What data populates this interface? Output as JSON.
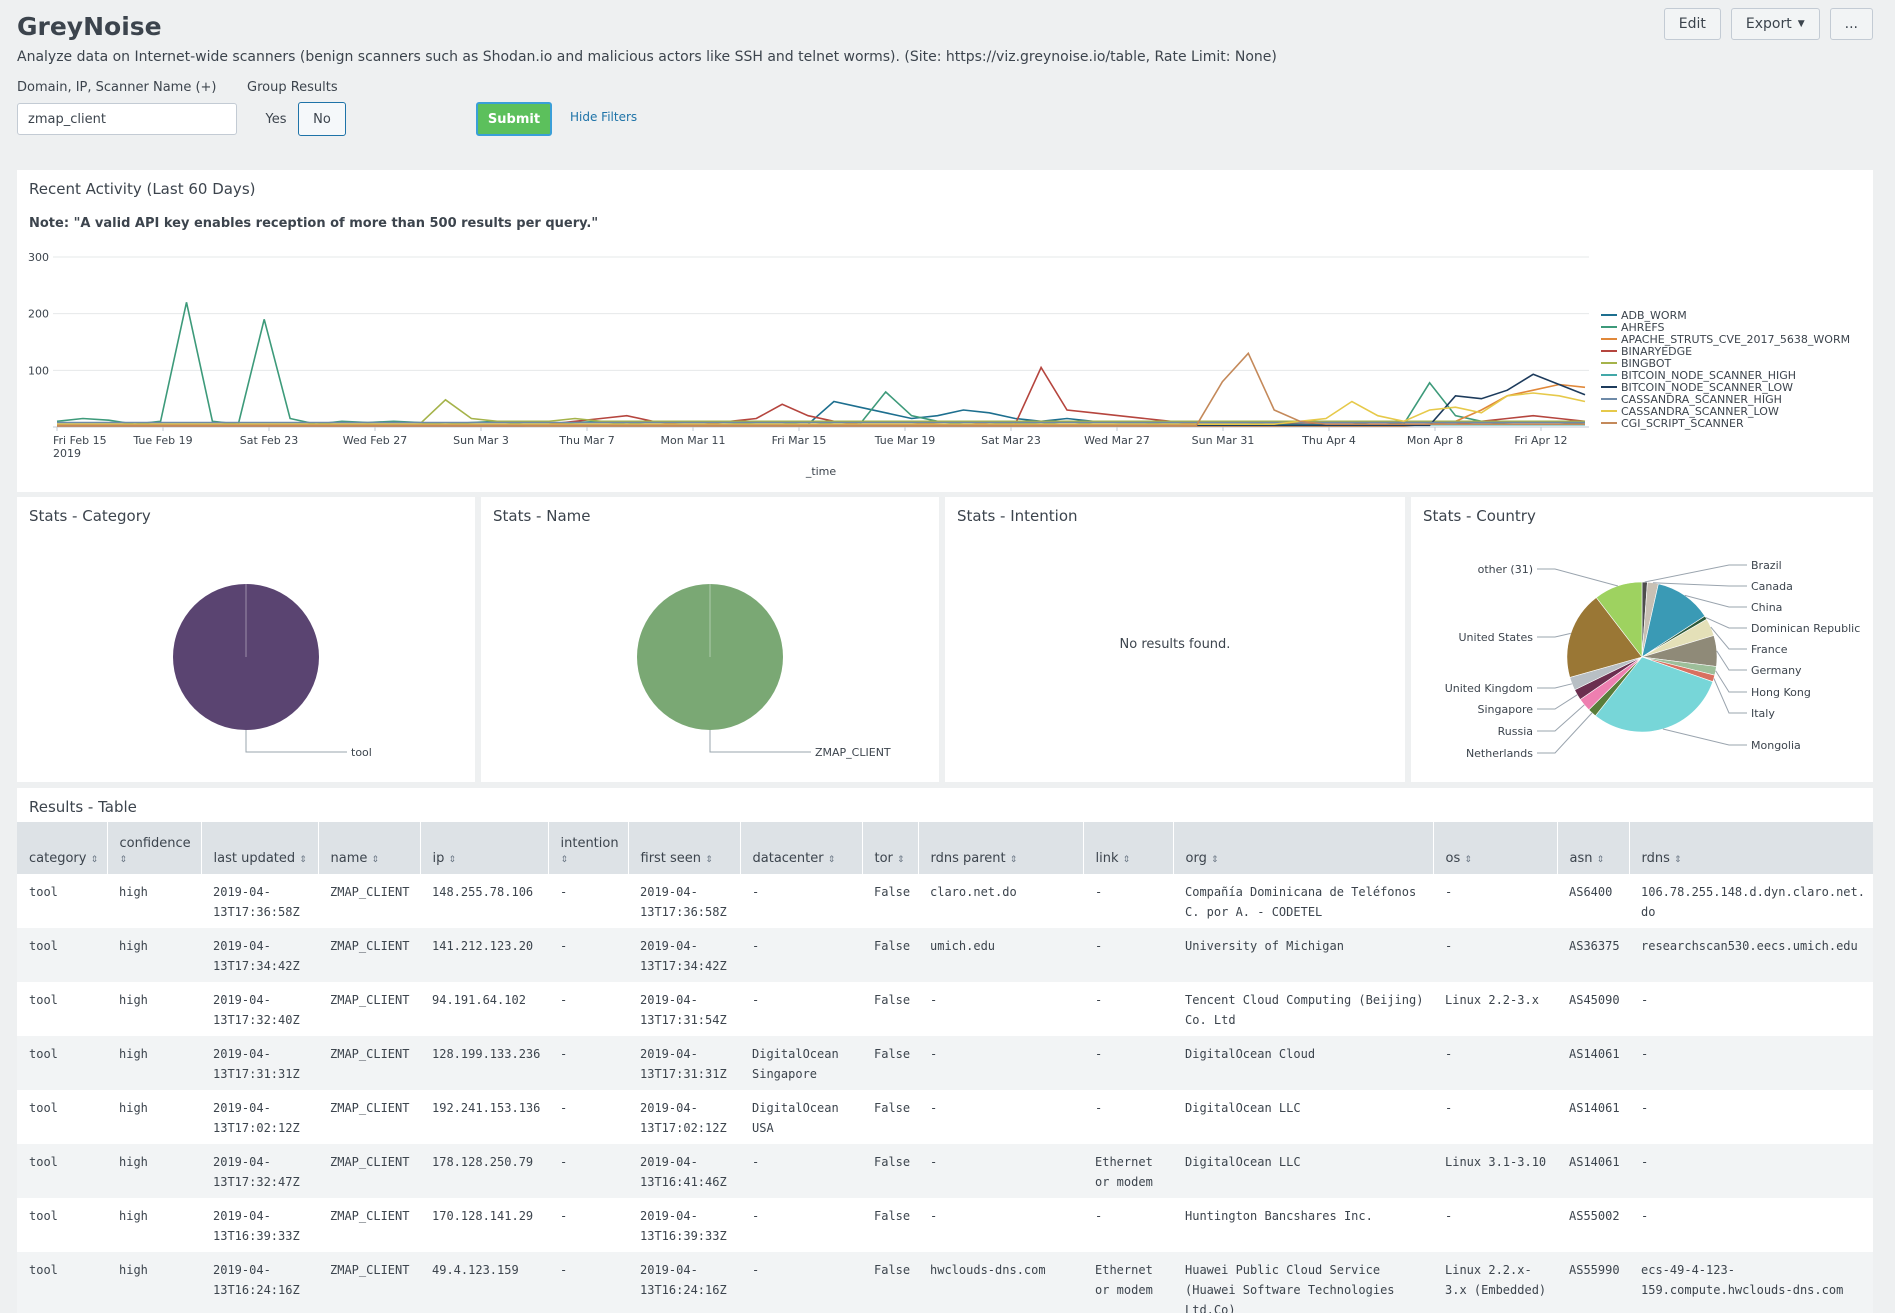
{
  "app": {
    "title": "GreyNoise",
    "description": "Analyze data on Internet-wide scanners (benign scanners such as Shodan.io and malicious actors like SSH and telnet worms). (Site: https://viz.greynoise.io/table, Rate Limit: None)",
    "edit_label": "Edit",
    "export_label": "Export",
    "more_label": "..."
  },
  "filters": {
    "query_label": "Domain, IP, Scanner Name (+)",
    "query_value": "zmap_client",
    "group_label": "Group Results",
    "yes_label": "Yes",
    "no_label": "No",
    "submit_label": "Submit",
    "hide_label": "Hide Filters"
  },
  "activity": {
    "title": "Recent Activity (Last 60 Days)",
    "note": "Note: \"A valid API key enables reception of more than 500 results per query.\""
  },
  "chart_data": [
    {
      "type": "line",
      "title": "Recent Activity (Last 60 Days)",
      "xlabel": "_time",
      "ylabel": "",
      "ylim": [
        0,
        300
      ],
      "yticks": [
        "300",
        "200",
        "100"
      ],
      "xticks": [
        "Fri Feb 15",
        "Tue Feb 19",
        "Sat Feb 23",
        "Wed Feb 27",
        "Sun Mar 3",
        "Thu Mar 7",
        "Mon Mar 11",
        "Fri Mar 15",
        "Tue Mar 19",
        "Sat Mar 23",
        "Wed Mar 27",
        "Sun Mar 31",
        "Thu Apr 4",
        "Mon Apr 8",
        "Fri Apr 12"
      ],
      "xtick_sub": "2019",
      "series": [
        {
          "name": "ADB_WORM",
          "color": "#1d6f8f",
          "values": [
            5,
            5,
            5,
            5,
            5,
            5,
            5,
            5,
            5,
            5,
            5,
            5,
            5,
            5,
            5,
            5,
            5,
            5,
            5,
            5,
            5,
            5,
            5,
            5,
            5,
            5,
            5,
            5,
            5,
            5,
            45,
            35,
            25,
            15,
            20,
            30,
            25,
            15,
            10,
            15,
            10,
            8,
            8,
            8,
            8,
            8,
            8,
            8,
            8,
            10,
            10,
            10,
            10,
            8,
            8,
            8,
            8,
            10,
            10,
            10
          ]
        },
        {
          "name": "AHREFS",
          "color": "#3d9a7a",
          "values": [
            10,
            15,
            12,
            5,
            10,
            220,
            10,
            5,
            190,
            15,
            5,
            10,
            8,
            10,
            8,
            5,
            8,
            10,
            5,
            5,
            8,
            10,
            5,
            10,
            8,
            10,
            8,
            5,
            5,
            10,
            5,
            5,
            62,
            20,
            10,
            5,
            5,
            8,
            5,
            10,
            5,
            5,
            5,
            10,
            5,
            5,
            5,
            10,
            5,
            5,
            5,
            10,
            5,
            78,
            20,
            10,
            5,
            5,
            5,
            8
          ]
        },
        {
          "name": "APACHE_STRUTS_CVE_2017_5638_WORM",
          "color": "#e0883a",
          "values": [
            2,
            2,
            2,
            2,
            2,
            2,
            2,
            2,
            2,
            2,
            2,
            2,
            2,
            2,
            2,
            2,
            2,
            2,
            2,
            2,
            2,
            2,
            2,
            2,
            2,
            2,
            2,
            2,
            2,
            2,
            2,
            2,
            2,
            2,
            2,
            2,
            2,
            2,
            2,
            2,
            2,
            2,
            2,
            2,
            2,
            2,
            2,
            2,
            2,
            2,
            2,
            2,
            2,
            5,
            10,
            30,
            55,
            65,
            75,
            70
          ]
        },
        {
          "name": "BINARYEDGE",
          "color": "#b5453e",
          "values": [
            3,
            3,
            3,
            3,
            3,
            3,
            3,
            3,
            3,
            3,
            3,
            3,
            3,
            3,
            3,
            3,
            3,
            3,
            3,
            5,
            10,
            15,
            20,
            10,
            5,
            5,
            10,
            15,
            40,
            20,
            10,
            5,
            5,
            5,
            8,
            10,
            5,
            5,
            105,
            30,
            25,
            20,
            15,
            10,
            5,
            5,
            5,
            5,
            5,
            5,
            5,
            5,
            5,
            5,
            5,
            10,
            15,
            20,
            15,
            10
          ]
        },
        {
          "name": "BINGBOT",
          "color": "#a5b34a",
          "values": [
            5,
            5,
            5,
            5,
            5,
            5,
            5,
            5,
            5,
            5,
            5,
            5,
            5,
            5,
            5,
            48,
            15,
            10,
            10,
            10,
            15,
            10,
            10,
            10,
            10,
            10,
            10,
            10,
            10,
            10,
            10,
            10,
            10,
            10,
            10,
            10,
            10,
            10,
            10,
            10,
            10,
            10,
            10,
            10,
            10,
            10,
            10,
            10,
            10,
            10,
            10,
            10,
            10,
            10,
            10,
            10,
            10,
            10,
            10,
            10
          ]
        },
        {
          "name": "BITCOIN_NODE_SCANNER_HIGH",
          "color": "#42a8a8",
          "values": [
            4,
            4,
            4,
            4,
            4,
            4,
            4,
            4,
            4,
            4,
            4,
            4,
            4,
            4,
            4,
            4,
            4,
            4,
            4,
            4,
            4,
            4,
            4,
            4,
            4,
            4,
            4,
            4,
            4,
            4,
            4,
            4,
            4,
            4,
            4,
            4,
            4,
            4,
            4,
            4,
            4,
            4,
            4,
            4,
            4,
            4,
            4,
            4,
            4,
            4,
            4,
            4,
            4,
            4,
            4,
            4,
            4,
            4,
            4,
            4
          ]
        },
        {
          "name": "BITCOIN_NODE_SCANNER_LOW",
          "color": "#1d3b5c",
          "values": [
            3,
            3,
            3,
            3,
            3,
            3,
            3,
            3,
            3,
            3,
            3,
            3,
            3,
            3,
            3,
            3,
            3,
            3,
            3,
            3,
            3,
            3,
            3,
            3,
            3,
            3,
            3,
            3,
            3,
            3,
            3,
            3,
            3,
            3,
            3,
            3,
            3,
            3,
            3,
            3,
            3,
            3,
            3,
            3,
            3,
            3,
            3,
            3,
            3,
            3,
            3,
            3,
            3,
            3,
            55,
            50,
            65,
            93,
            75,
            57
          ]
        },
        {
          "name": "CASSANDRA_SCANNER_HIGH",
          "color": "#6e8aa8",
          "values": [
            8,
            8,
            8,
            8,
            8,
            8,
            8,
            8,
            8,
            8,
            8,
            8,
            8,
            8,
            8,
            8,
            8,
            8,
            8,
            8,
            8,
            8,
            8,
            8,
            8,
            8,
            8,
            8,
            8,
            8,
            8,
            8,
            8,
            8,
            8,
            8,
            8,
            8,
            8,
            8,
            8,
            8,
            8,
            8,
            8,
            8,
            8,
            8,
            8,
            8,
            8,
            8,
            8,
            8,
            8,
            8,
            8,
            8,
            8,
            8
          ]
        },
        {
          "name": "CASSANDRA_SCANNER_LOW",
          "color": "#e6c94a",
          "values": [
            5,
            5,
            5,
            5,
            5,
            5,
            5,
            5,
            5,
            5,
            5,
            5,
            5,
            5,
            5,
            5,
            5,
            5,
            5,
            5,
            5,
            5,
            5,
            5,
            5,
            5,
            5,
            5,
            5,
            5,
            5,
            5,
            5,
            5,
            5,
            5,
            5,
            5,
            5,
            5,
            5,
            5,
            5,
            5,
            5,
            5,
            5,
            5,
            10,
            15,
            45,
            20,
            10,
            30,
            35,
            25,
            55,
            60,
            55,
            45
          ]
        },
        {
          "name": "CGI_SCRIPT_SCANNER",
          "color": "#c4895a",
          "values": [
            3,
            3,
            3,
            3,
            3,
            3,
            3,
            3,
            3,
            3,
            3,
            3,
            3,
            3,
            3,
            3,
            3,
            3,
            3,
            3,
            3,
            3,
            3,
            3,
            3,
            3,
            3,
            3,
            3,
            3,
            3,
            3,
            3,
            3,
            3,
            3,
            3,
            3,
            3,
            3,
            3,
            3,
            3,
            3,
            3,
            80,
            130,
            30,
            10,
            5,
            5,
            5,
            5,
            5,
            5,
            5,
            5,
            5,
            5,
            5
          ]
        }
      ]
    },
    {
      "type": "pie",
      "title": "Stats - Category",
      "categories": [
        "tool"
      ],
      "values": [
        100
      ],
      "colors": [
        "#5a4471"
      ]
    },
    {
      "type": "pie",
      "title": "Stats - Name",
      "categories": [
        "ZMAP_CLIENT"
      ],
      "values": [
        100
      ],
      "colors": [
        "#7aa874"
      ]
    },
    {
      "type": "pie",
      "title": "Stats - Country",
      "categories": [
        "Brazil",
        "Canada",
        "China",
        "Dominican Republic",
        "France",
        "Germany",
        "Hong Kong",
        "Italy",
        "Mongolia",
        "Netherlands",
        "Russia",
        "Singapore",
        "United Kingdom",
        "United States",
        "other (31)"
      ],
      "values": [
        1.2,
        2.5,
        13,
        0.8,
        4,
        7,
        2,
        1.5,
        32,
        2,
        3,
        2.5,
        3,
        20,
        11
      ],
      "colors": [
        "#4d4d4d",
        "#c8c0b4",
        "#3a9ab5",
        "#2d5a3a",
        "#e4e0b8",
        "#8f8a78",
        "#9dbf9a",
        "#d97060",
        "#77d6d8",
        "#5a7d3a",
        "#ee7fb0",
        "#6b2f4f",
        "#b8bfc4",
        "#9a7735",
        "#9ed260"
      ]
    }
  ],
  "panels": {
    "category_title": "Stats - Category",
    "name_title": "Stats - Name",
    "intention_title": "Stats - Intention",
    "intention_empty": "No results found.",
    "country_title": "Stats - Country"
  },
  "table": {
    "title": "Results - Table",
    "columns": [
      "category",
      "confidence",
      "last updated",
      "name",
      "ip",
      "intention",
      "first seen",
      "datacenter",
      "tor",
      "rdns parent",
      "link",
      "org",
      "os",
      "asn",
      "rdns"
    ],
    "rows": [
      [
        "tool",
        "high",
        "2019-04-13T17:36:58Z",
        "ZMAP_CLIENT",
        "148.255.78.106",
        "-",
        "2019-04-13T17:36:58Z",
        "-",
        "False",
        "claro.net.do",
        "-",
        "Compañía Dominicana de Teléfonos C. por A. - CODETEL",
        "-",
        "AS6400",
        "106.78.255.148.d.dyn.claro.net.do"
      ],
      [
        "tool",
        "high",
        "2019-04-13T17:34:42Z",
        "ZMAP_CLIENT",
        "141.212.123.20",
        "-",
        "2019-04-13T17:34:42Z",
        "-",
        "False",
        "umich.edu",
        "-",
        "University of Michigan",
        "-",
        "AS36375",
        "researchscan530.eecs.umich.edu"
      ],
      [
        "tool",
        "high",
        "2019-04-13T17:32:40Z",
        "ZMAP_CLIENT",
        "94.191.64.102",
        "-",
        "2019-04-13T17:31:54Z",
        "-",
        "False",
        "-",
        "-",
        "Tencent Cloud Computing (Beijing) Co. Ltd",
        "Linux 2.2-3.x",
        "AS45090",
        "-"
      ],
      [
        "tool",
        "high",
        "2019-04-13T17:31:31Z",
        "ZMAP_CLIENT",
        "128.199.133.236",
        "-",
        "2019-04-13T17:31:31Z",
        "DigitalOcean Singapore",
        "False",
        "-",
        "-",
        "DigitalOcean Cloud",
        "-",
        "AS14061",
        "-"
      ],
      [
        "tool",
        "high",
        "2019-04-13T17:02:12Z",
        "ZMAP_CLIENT",
        "192.241.153.136",
        "-",
        "2019-04-13T17:02:12Z",
        "DigitalOcean USA",
        "False",
        "-",
        "-",
        "DigitalOcean LLC",
        "-",
        "AS14061",
        "-"
      ],
      [
        "tool",
        "high",
        "2019-04-13T17:32:47Z",
        "ZMAP_CLIENT",
        "178.128.250.79",
        "-",
        "2019-04-13T16:41:46Z",
        "-",
        "False",
        "-",
        "Ethernet or modem",
        "DigitalOcean LLC",
        "Linux 3.1-3.10",
        "AS14061",
        "-"
      ],
      [
        "tool",
        "high",
        "2019-04-13T16:39:33Z",
        "ZMAP_CLIENT",
        "170.128.141.29",
        "-",
        "2019-04-13T16:39:33Z",
        "-",
        "False",
        "-",
        "-",
        "Huntington Bancshares Inc.",
        "-",
        "AS55002",
        "-"
      ],
      [
        "tool",
        "high",
        "2019-04-13T16:24:16Z",
        "ZMAP_CLIENT",
        "49.4.123.159",
        "-",
        "2019-04-13T16:24:16Z",
        "-",
        "False",
        "hwclouds-dns.com",
        "Ethernet or modem",
        "Huawei Public Cloud Service (Huawei Software Technologies Ltd.Co)",
        "Linux 2.2.x-3.x (Embedded)",
        "AS55990",
        "ecs-49-4-123-159.compute.hwclouds-dns.com"
      ]
    ]
  }
}
